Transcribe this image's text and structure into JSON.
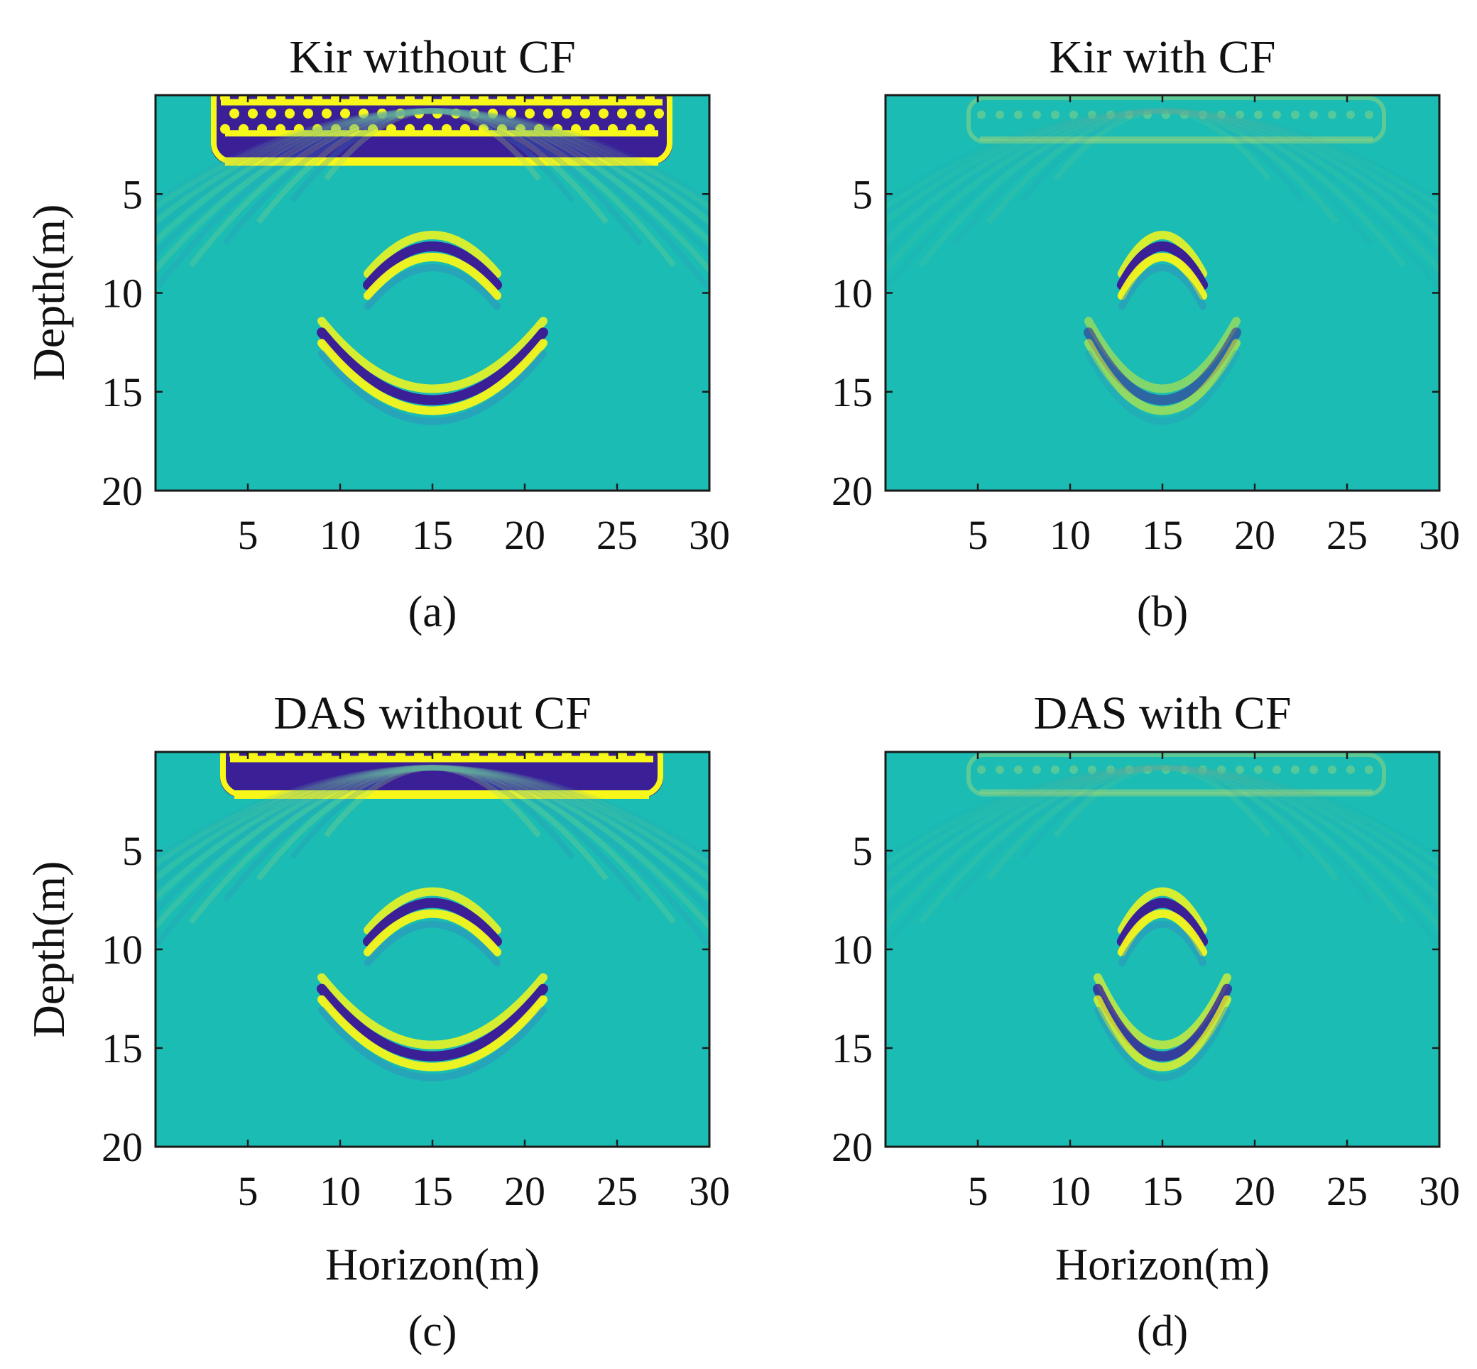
{
  "figure": {
    "colors": {
      "background": "#1bbcb3",
      "positive": "#f7f71a",
      "negative": "#3b1f96",
      "positive_faint": "#9fd67a",
      "negative_faint": "#2e8fc0"
    }
  },
  "chart_data": [
    {
      "panel": "a",
      "type": "heatmap",
      "title": "Kir without CF",
      "caption": "(a)",
      "xlabel": "",
      "ylabel": "Depth(m)",
      "xlim": [
        0,
        30
      ],
      "ylim": [
        20,
        0
      ],
      "xticks": [
        5,
        10,
        15,
        20,
        25,
        30
      ],
      "yticks": [
        5,
        10,
        15,
        20
      ],
      "amplitude": 1.0,
      "surface_band": {
        "x_start": 3,
        "x_end": 28,
        "depth_top": 0,
        "depth_bottom": 3.5,
        "strength": 1.0
      },
      "reflectors": [
        {
          "shape": "arc",
          "x_center": 15,
          "apex_depth": 7.6,
          "half_width": 3.5,
          "strength": 1.0
        },
        {
          "shape": "arc",
          "x_center": 15,
          "apex_depth": 15.6,
          "half_width": 6,
          "strength": 1.0
        }
      ]
    },
    {
      "panel": "b",
      "type": "heatmap",
      "title": "Kir with CF",
      "caption": "(b)",
      "xlabel": "",
      "ylabel": "",
      "xlim": [
        0,
        30
      ],
      "ylim": [
        20,
        0
      ],
      "xticks": [
        5,
        10,
        15,
        20,
        25,
        30
      ],
      "yticks": [
        5,
        10,
        15,
        20
      ],
      "amplitude": 0.3,
      "surface_band": {
        "x_start": 4.5,
        "x_end": 27,
        "depth_top": 0,
        "depth_bottom": 2.2,
        "strength": 0.15
      },
      "reflectors": [
        {
          "shape": "arc",
          "x_center": 15,
          "apex_depth": 7.6,
          "half_width": 2.2,
          "strength": 1.0
        },
        {
          "shape": "arc",
          "x_center": 15,
          "apex_depth": 15.6,
          "half_width": 4,
          "strength": 0.55
        }
      ]
    },
    {
      "panel": "c",
      "type": "heatmap",
      "title": "DAS without CF",
      "caption": "(c)",
      "xlabel": "Horizon(m)",
      "ylabel": "Depth(m)",
      "xlim": [
        0,
        30
      ],
      "ylim": [
        20,
        0
      ],
      "xticks": [
        5,
        10,
        15,
        20,
        25,
        30
      ],
      "yticks": [
        5,
        10,
        15,
        20
      ],
      "amplitude": 0.9,
      "surface_band": {
        "x_start": 3.5,
        "x_end": 27.5,
        "depth_top": 0,
        "depth_bottom": 2.3,
        "strength": 1.0
      },
      "reflectors": [
        {
          "shape": "arc",
          "x_center": 15,
          "apex_depth": 7.6,
          "half_width": 3.5,
          "strength": 1.0
        },
        {
          "shape": "arc",
          "x_center": 15,
          "apex_depth": 15.6,
          "half_width": 6,
          "strength": 1.0
        }
      ]
    },
    {
      "panel": "d",
      "type": "heatmap",
      "title": "DAS with CF",
      "caption": "(d)",
      "xlabel": "Horizon(m)",
      "ylabel": "",
      "xlim": [
        0,
        30
      ],
      "ylim": [
        20,
        0
      ],
      "xticks": [
        5,
        10,
        15,
        20,
        25,
        30
      ],
      "yticks": [
        5,
        10,
        15,
        20
      ],
      "amplitude": 0.3,
      "surface_band": {
        "x_start": 4.5,
        "x_end": 27,
        "depth_top": 0,
        "depth_bottom": 2.0,
        "strength": 0.1
      },
      "reflectors": [
        {
          "shape": "arc",
          "x_center": 15,
          "apex_depth": 7.6,
          "half_width": 2.2,
          "strength": 1.0
        },
        {
          "shape": "arc",
          "x_center": 15,
          "apex_depth": 15.6,
          "half_width": 3.5,
          "strength": 0.8
        }
      ]
    }
  ]
}
